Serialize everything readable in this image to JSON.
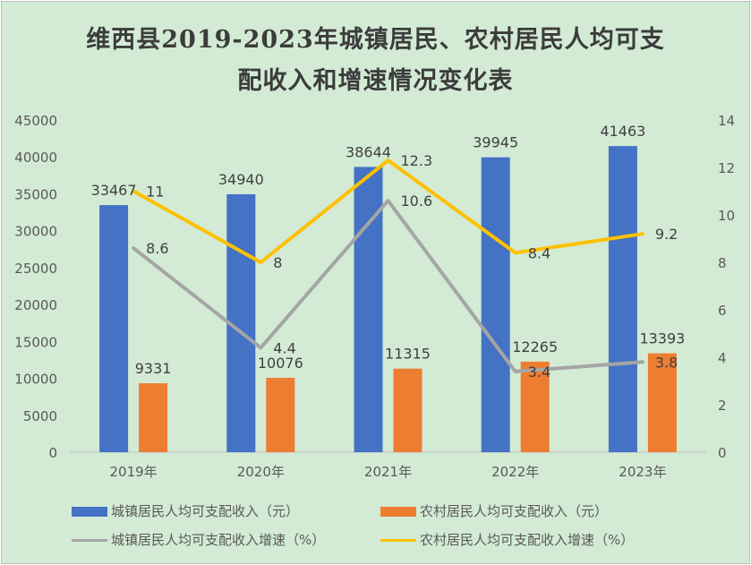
{
  "chart_data": {
    "type": "bar",
    "title_line1": "维西县2019-2023年城镇居民、农村居民人均可支",
    "title_line2": "配收入和增速情况变化表",
    "categories": [
      "2019年",
      "2020年",
      "2021年",
      "2022年",
      "2023年"
    ],
    "y_left": {
      "min": 0,
      "max": 45000,
      "step": 5000,
      "ticks": [
        "0",
        "5000",
        "10000",
        "15000",
        "20000",
        "25000",
        "30000",
        "35000",
        "40000",
        "45000"
      ]
    },
    "y_right": {
      "min": 0,
      "max": 14,
      "step": 2,
      "ticks": [
        "0",
        "2",
        "4",
        "6",
        "8",
        "10",
        "12",
        "14"
      ]
    },
    "bar_series": [
      {
        "name": "城镇居民人均可支配收入（元）",
        "color": "#4472c4",
        "values": [
          33467,
          34940,
          38644,
          39945,
          41463
        ],
        "labels": [
          "33467",
          "34940",
          "38644",
          "39945",
          "41463"
        ]
      },
      {
        "name": "农村居民人均可支配收入（元）",
        "color": "#ed7d31",
        "values": [
          9331,
          10076,
          11315,
          12265,
          13393
        ],
        "labels": [
          "9331",
          "10076",
          "11315",
          "12265",
          "13393"
        ]
      }
    ],
    "line_series": [
      {
        "name": "城镇居民人均可支配收入增速（%）",
        "color": "#a5a5a5",
        "values": [
          8.6,
          4.4,
          10.6,
          3.4,
          3.8
        ],
        "labels": [
          "8.6",
          "4.4",
          "10.6",
          "3.4",
          "3.8"
        ]
      },
      {
        "name": "农村居民人均可支配收入增速（%）",
        "color": "#ffc000",
        "values": [
          11,
          8,
          12.3,
          8.4,
          9.2
        ],
        "labels": [
          "11",
          "8",
          "12.3",
          "8.4",
          "9.2"
        ]
      }
    ],
    "legend": {
      "bar1": "城镇居民人均可支配收入（元）",
      "bar2": "农村居民人均可支配收入（元）",
      "line1": "城镇居民人均可支配收入增速（%）",
      "line2": "农村居民人均可支配收入增速（%）"
    }
  }
}
